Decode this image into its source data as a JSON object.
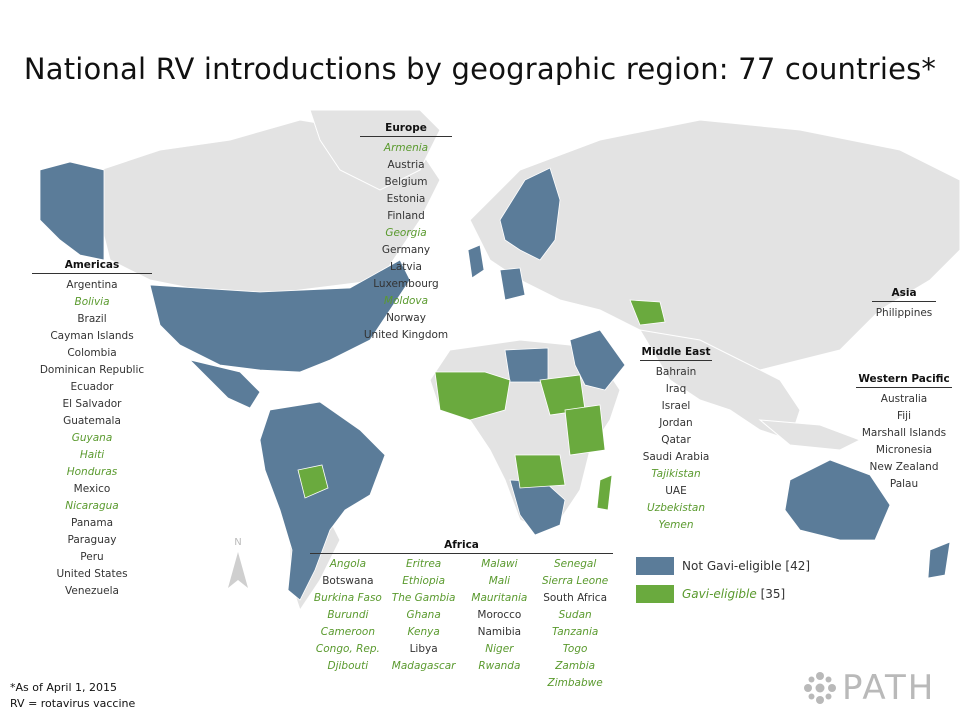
{
  "title": "National RV introductions by geographic region: 77 countries*",
  "colors": {
    "not_gavi": "#5b7c99",
    "gavi": "#6aaa3e",
    "land": "#e3e3e3"
  },
  "regions": {
    "americas": {
      "heading": "Americas",
      "countries": [
        {
          "name": "Argentina",
          "gavi": false
        },
        {
          "name": "Bolivia",
          "gavi": true
        },
        {
          "name": "Brazil",
          "gavi": false
        },
        {
          "name": "Cayman Islands",
          "gavi": false
        },
        {
          "name": "Colombia",
          "gavi": false
        },
        {
          "name": "Dominican Republic",
          "gavi": false
        },
        {
          "name": "Ecuador",
          "gavi": false
        },
        {
          "name": "El Salvador",
          "gavi": false
        },
        {
          "name": "Guatemala",
          "gavi": false
        },
        {
          "name": "Guyana",
          "gavi": true
        },
        {
          "name": "Haiti",
          "gavi": true
        },
        {
          "name": "Honduras",
          "gavi": true
        },
        {
          "name": "Mexico",
          "gavi": false
        },
        {
          "name": "Nicaragua",
          "gavi": true
        },
        {
          "name": "Panama",
          "gavi": false
        },
        {
          "name": "Paraguay",
          "gavi": false
        },
        {
          "name": "Peru",
          "gavi": false
        },
        {
          "name": "United States",
          "gavi": false
        },
        {
          "name": "Venezuela",
          "gavi": false
        }
      ]
    },
    "europe": {
      "heading": "Europe",
      "countries": [
        {
          "name": "Armenia",
          "gavi": true
        },
        {
          "name": "Austria",
          "gavi": false
        },
        {
          "name": "Belgium",
          "gavi": false
        },
        {
          "name": "Estonia",
          "gavi": false
        },
        {
          "name": "Finland",
          "gavi": false
        },
        {
          "name": "Georgia",
          "gavi": true
        },
        {
          "name": "Germany",
          "gavi": false
        },
        {
          "name": "Latvia",
          "gavi": false
        },
        {
          "name": "Luxembourg",
          "gavi": false
        },
        {
          "name": "Moldova",
          "gavi": true
        },
        {
          "name": "Norway",
          "gavi": false
        },
        {
          "name": "United Kingdom",
          "gavi": false
        }
      ]
    },
    "middle_east": {
      "heading": "Middle East",
      "countries": [
        {
          "name": "Bahrain",
          "gavi": false
        },
        {
          "name": "Iraq",
          "gavi": false
        },
        {
          "name": "Israel",
          "gavi": false
        },
        {
          "name": "Jordan",
          "gavi": false
        },
        {
          "name": "Qatar",
          "gavi": false
        },
        {
          "name": "Saudi Arabia",
          "gavi": false
        },
        {
          "name": "Tajikistan",
          "gavi": true
        },
        {
          "name": "UAE",
          "gavi": false
        },
        {
          "name": "Uzbekistan",
          "gavi": true
        },
        {
          "name": "Yemen",
          "gavi": true
        }
      ]
    },
    "asia": {
      "heading": "Asia",
      "countries": [
        {
          "name": "Philippines",
          "gavi": false
        }
      ]
    },
    "western_pacific": {
      "heading": "Western Pacific",
      "countries": [
        {
          "name": "Australia",
          "gavi": false
        },
        {
          "name": "Fiji",
          "gavi": false
        },
        {
          "name": "Marshall Islands",
          "gavi": false
        },
        {
          "name": "Micronesia",
          "gavi": false
        },
        {
          "name": "New Zealand",
          "gavi": false
        },
        {
          "name": "Palau",
          "gavi": false
        }
      ]
    },
    "africa": {
      "heading": "Africa",
      "columns": [
        [
          {
            "name": "Angola",
            "gavi": true
          },
          {
            "name": "Botswana",
            "gavi": false
          },
          {
            "name": "Burkina Faso",
            "gavi": true
          },
          {
            "name": "Burundi",
            "gavi": true
          },
          {
            "name": "Cameroon",
            "gavi": true
          },
          {
            "name": "Congo, Rep.",
            "gavi": true
          },
          {
            "name": "Djibouti",
            "gavi": true
          }
        ],
        [
          {
            "name": "Eritrea",
            "gavi": true
          },
          {
            "name": "Ethiopia",
            "gavi": true
          },
          {
            "name": "The Gambia",
            "gavi": true
          },
          {
            "name": "Ghana",
            "gavi": true
          },
          {
            "name": "Kenya",
            "gavi": true
          },
          {
            "name": "Libya",
            "gavi": false
          },
          {
            "name": "Madagascar",
            "gavi": true
          }
        ],
        [
          {
            "name": "Malawi",
            "gavi": true
          },
          {
            "name": "Mali",
            "gavi": true
          },
          {
            "name": "Mauritania",
            "gavi": true
          },
          {
            "name": "Morocco",
            "gavi": false
          },
          {
            "name": "Namibia",
            "gavi": false
          },
          {
            "name": "Niger",
            "gavi": true
          },
          {
            "name": "Rwanda",
            "gavi": true
          }
        ],
        [
          {
            "name": "Senegal",
            "gavi": true
          },
          {
            "name": "Sierra Leone",
            "gavi": true
          },
          {
            "name": "South Africa",
            "gavi": false
          },
          {
            "name": "Sudan",
            "gavi": true
          },
          {
            "name": "Tanzania",
            "gavi": true
          },
          {
            "name": "Togo",
            "gavi": true
          },
          {
            "name": "Zambia",
            "gavi": true
          },
          {
            "name": "Zimbabwe",
            "gavi": true
          }
        ]
      ]
    }
  },
  "legend": {
    "not_gavi": {
      "label": "Not Gavi-eligible",
      "count": "[42]"
    },
    "gavi": {
      "label": "Gavi-eligible",
      "count": "[35]"
    }
  },
  "footnote": {
    "line1": "*As of April 1, 2015",
    "line2": "RV = rotavirus vaccine"
  },
  "compass_label": "N",
  "logo_text": "PATH"
}
